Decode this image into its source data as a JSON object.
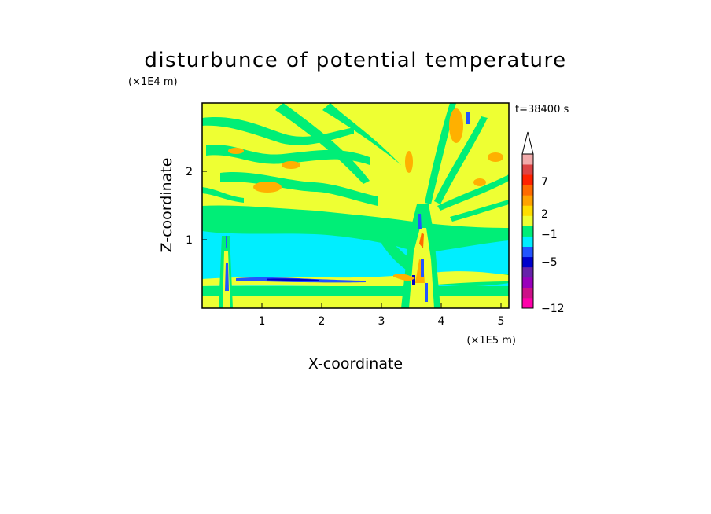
{
  "chart_data": {
    "type": "heatmap",
    "title": "disturbunce of potential temperature",
    "xlabel": "X-coordinate",
    "ylabel": "Z-coordinate",
    "x_unit": "(×1E5 m)",
    "y_unit": "(×1E4 m)",
    "time_label": "t=38400 s",
    "xlim": [
      0,
      5.15
    ],
    "ylim": [
      0,
      3.0
    ],
    "x_ticks": [
      "1",
      "2",
      "3",
      "4",
      "5"
    ],
    "y_ticks": [
      "1",
      "2"
    ],
    "colorbar": {
      "labels": [
        "7",
        "2",
        "−1",
        "−5",
        "−12"
      ],
      "colors": [
        "#ff00aa",
        "#cc1188",
        "#9900bb",
        "#6622aa",
        "#0000cc",
        "#2255ff",
        "#00eeff",
        "#00ee77",
        "#eeff33",
        "#ffdd00",
        "#ffa200",
        "#ff6a00",
        "#ff2200",
        "#dd4444",
        "#f2aaaa"
      ],
      "extend": "max"
    },
    "layers": [
      {
        "level": "ground band",
        "z_range": [
          0.0,
          0.15
        ],
        "color": "#eeff33"
      },
      {
        "level": "low green band",
        "z_range": [
          0.15,
          0.3
        ],
        "color": "#00ee77"
      },
      {
        "level": "cyan layer",
        "z_range": [
          0.35,
          1.0
        ],
        "color": "#00eeff"
      },
      {
        "level": "green layer",
        "z_range": [
          1.0,
          1.55
        ],
        "color": "#00ee77"
      },
      {
        "level": "upper yellow",
        "z_range": [
          1.55,
          3.0
        ],
        "color": "#eeff33"
      }
    ],
    "features": [
      {
        "name": "thin cold streak",
        "x": [
          0.6,
          2.5
        ],
        "z": 0.4,
        "color": "#2255ff"
      },
      {
        "name": "mountain wave plume",
        "x": [
          3.3,
          4.0
        ],
        "z": [
          0.0,
          3.0
        ]
      }
    ]
  }
}
